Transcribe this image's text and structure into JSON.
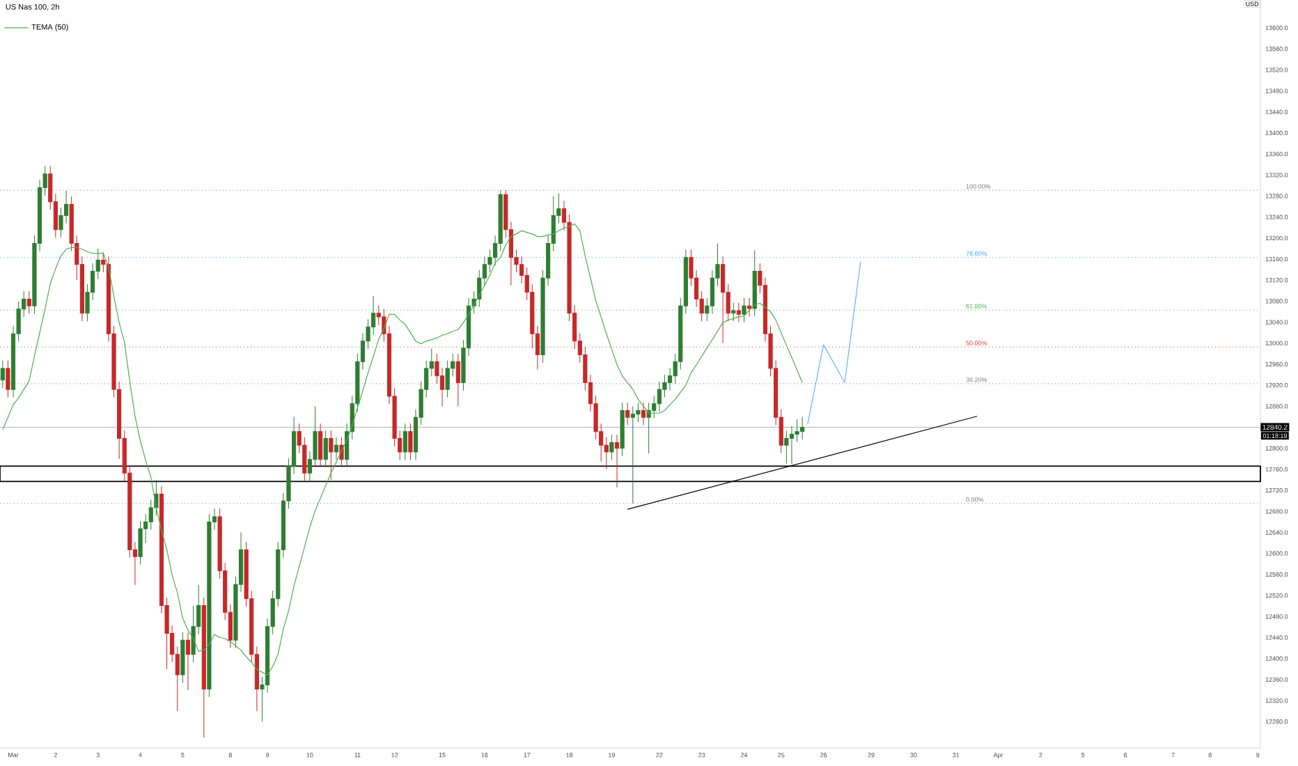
{
  "chart_data": {
    "type": "candlestick",
    "title": "US Nas 100, 2h",
    "categories": [
      null,
      null,
      "Mar",
      null,
      null,
      null,
      null,
      null,
      null,
      null,
      "2",
      null,
      null,
      null,
      null,
      null,
      null,
      null,
      "3",
      null,
      null,
      null,
      null,
      null,
      null,
      null,
      "4",
      null,
      null,
      null,
      null,
      null,
      null,
      null,
      "5",
      null,
      null,
      null,
      null,
      null,
      null,
      null,
      null,
      "8",
      null,
      null,
      null,
      null,
      null,
      null,
      "9",
      null,
      null,
      null,
      null,
      null,
      null,
      null,
      "10",
      null,
      null,
      null,
      null,
      null,
      null,
      null,
      null,
      "11",
      null,
      null,
      null,
      null,
      null,
      null,
      "12",
      null,
      null,
      null,
      null,
      null,
      null,
      null,
      null,
      "15",
      null,
      null,
      null,
      null,
      null,
      null,
      null,
      "16",
      null,
      null,
      null,
      null,
      null,
      null,
      null,
      "17",
      null,
      null,
      null,
      null,
      null,
      null,
      null,
      "18",
      null,
      null,
      null,
      null,
      null,
      null,
      null,
      "19",
      null,
      null,
      null,
      null,
      null,
      null,
      null,
      null,
      "22",
      null,
      null,
      null,
      null,
      null,
      null,
      null,
      "23",
      null,
      null,
      null,
      null,
      null,
      null,
      null,
      "24",
      null,
      null,
      null,
      null,
      null,
      null,
      "25",
      null,
      null,
      null,
      null,
      null,
      null,
      null,
      "26",
      null,
      null,
      null,
      null,
      null,
      null,
      null,
      null,
      "29",
      null,
      null,
      null,
      null,
      null,
      null,
      null,
      "30",
      null,
      null,
      null,
      null,
      null,
      null,
      null,
      "31",
      null,
      null,
      null,
      null,
      null,
      null,
      null,
      "Apr",
      null,
      null,
      null,
      null,
      null,
      null,
      null,
      "2",
      null,
      null,
      null,
      null,
      null,
      null,
      null,
      "5",
      null,
      null,
      null,
      null,
      null,
      null,
      null,
      "6",
      null,
      null,
      null,
      null,
      null,
      null,
      null,
      null,
      "7",
      null,
      null,
      null,
      null,
      null,
      null,
      "8",
      null,
      null,
      null,
      null,
      null,
      null,
      null,
      null,
      "9"
    ],
    "ohlc": [
      [
        12930,
        12967,
        12915,
        12952
      ],
      [
        12952,
        12967,
        12897,
        12912
      ],
      [
        12912,
        13033,
        12897,
        13018
      ],
      [
        13018,
        13080,
        13003,
        13065
      ],
      [
        13065,
        13099,
        13050,
        13084
      ],
      [
        13084,
        13099,
        13056,
        13071
      ],
      [
        13071,
        13205,
        13056,
        13190
      ],
      [
        13190,
        13311,
        13175,
        13296
      ],
      [
        13296,
        13337,
        13281,
        13322
      ],
      [
        13322,
        13337,
        13254,
        13269
      ],
      [
        13269,
        13284,
        13201,
        13216
      ],
      [
        13216,
        13258,
        13201,
        13243
      ],
      [
        13243,
        13290,
        13228,
        13264
      ],
      [
        13264,
        13279,
        13175,
        13190
      ],
      [
        13190,
        13205,
        13120,
        13150
      ],
      [
        13150,
        13165,
        13042,
        13057
      ],
      [
        13057,
        13112,
        13042,
        13097
      ],
      [
        13097,
        13152,
        13082,
        13137
      ],
      [
        13137,
        13180,
        13122,
        13158
      ],
      [
        13158,
        13173,
        13135,
        13150
      ],
      [
        13150,
        13165,
        13003,
        13018
      ],
      [
        13018,
        13033,
        12897,
        12912
      ],
      [
        12912,
        12927,
        12780,
        12819
      ],
      [
        12819,
        12834,
        12738,
        12753
      ],
      [
        12753,
        12768,
        12592,
        12607
      ],
      [
        12607,
        12622,
        12540,
        12594
      ],
      [
        12594,
        12662,
        12579,
        12647
      ],
      [
        12647,
        12675,
        12620,
        12660
      ],
      [
        12660,
        12702,
        12645,
        12687
      ],
      [
        12687,
        12740,
        12672,
        12713
      ],
      [
        12713,
        12728,
        12486,
        12501
      ],
      [
        12501,
        12516,
        12380,
        12448
      ],
      [
        12448,
        12463,
        12393,
        12408
      ],
      [
        12408,
        12423,
        12300,
        12369
      ],
      [
        12369,
        12450,
        12354,
        12435
      ],
      [
        12435,
        12450,
        12340,
        12408
      ],
      [
        12408,
        12500,
        12393,
        12461
      ],
      [
        12461,
        12540,
        12446,
        12501
      ],
      [
        12501,
        12516,
        12250,
        12342
      ],
      [
        12342,
        12675,
        12327,
        12660
      ],
      [
        12660,
        12685,
        12645,
        12670
      ],
      [
        12670,
        12685,
        12552,
        12567
      ],
      [
        12567,
        12582,
        12473,
        12488
      ],
      [
        12488,
        12503,
        12420,
        12435
      ],
      [
        12435,
        12556,
        12420,
        12541
      ],
      [
        12541,
        12640,
        12526,
        12607
      ],
      [
        12607,
        12622,
        12499,
        12514
      ],
      [
        12514,
        12529,
        12393,
        12408
      ],
      [
        12408,
        12423,
        12300,
        12342
      ],
      [
        12342,
        12365,
        12280,
        12350
      ],
      [
        12350,
        12476,
        12335,
        12461
      ],
      [
        12461,
        12529,
        12446,
        12514
      ],
      [
        12514,
        12622,
        12499,
        12607
      ],
      [
        12607,
        12715,
        12592,
        12700
      ],
      [
        12700,
        12781,
        12685,
        12766
      ],
      [
        12766,
        12860,
        12751,
        12832
      ],
      [
        12832,
        12847,
        12791,
        12806
      ],
      [
        12806,
        12821,
        12738,
        12753
      ],
      [
        12753,
        12794,
        12738,
        12779
      ],
      [
        12779,
        12880,
        12764,
        12832
      ],
      [
        12832,
        12847,
        12764,
        12779
      ],
      [
        12779,
        12834,
        12764,
        12819
      ],
      [
        12819,
        12834,
        12740,
        12793
      ],
      [
        12793,
        12821,
        12778,
        12806
      ],
      [
        12806,
        12821,
        12764,
        12779
      ],
      [
        12779,
        12847,
        12764,
        12832
      ],
      [
        12832,
        12900,
        12817,
        12885
      ],
      [
        12885,
        12980,
        12870,
        12965
      ],
      [
        12965,
        13019,
        12950,
        13004
      ],
      [
        13004,
        13046,
        12989,
        13031
      ],
      [
        13031,
        13090,
        13016,
        13057
      ],
      [
        13057,
        13072,
        13035,
        13050
      ],
      [
        13050,
        13065,
        13003,
        13018
      ],
      [
        13018,
        13033,
        12884,
        12899
      ],
      [
        12899,
        12914,
        12804,
        12819
      ],
      [
        12819,
        12834,
        12778,
        12793
      ],
      [
        12793,
        12847,
        12778,
        12832
      ],
      [
        12832,
        12847,
        12778,
        12793
      ],
      [
        12793,
        12874,
        12778,
        12859
      ],
      [
        12859,
        12927,
        12844,
        12912
      ],
      [
        12912,
        12967,
        12897,
        12952
      ],
      [
        12952,
        12990,
        12937,
        12965
      ],
      [
        12965,
        12980,
        12923,
        12938
      ],
      [
        12938,
        12953,
        12880,
        12912
      ],
      [
        12912,
        12967,
        12897,
        12952
      ],
      [
        12952,
        12980,
        12937,
        12965
      ],
      [
        12965,
        12980,
        12880,
        12925
      ],
      [
        12925,
        13006,
        12910,
        12991
      ],
      [
        12991,
        13086,
        12976,
        13071
      ],
      [
        13071,
        13099,
        13056,
        13084
      ],
      [
        13084,
        13139,
        13069,
        13124
      ],
      [
        13124,
        13165,
        13109,
        13150
      ],
      [
        13150,
        13178,
        13135,
        13163
      ],
      [
        13163,
        13205,
        13148,
        13190
      ],
      [
        13190,
        13291,
        13175,
        13283
      ],
      [
        13283,
        13291,
        13201,
        13216
      ],
      [
        13216,
        13231,
        13110,
        13163
      ],
      [
        13163,
        13178,
        13135,
        13150
      ],
      [
        13150,
        13165,
        13114,
        13129
      ],
      [
        13129,
        13144,
        13082,
        13097
      ],
      [
        13097,
        13112,
        12990,
        13018
      ],
      [
        13018,
        13033,
        12950,
        12978
      ],
      [
        12978,
        13139,
        12963,
        13124
      ],
      [
        13124,
        13205,
        13109,
        13190
      ],
      [
        13190,
        13280,
        13175,
        13243
      ],
      [
        13243,
        13285,
        13228,
        13256
      ],
      [
        13256,
        13271,
        13215,
        13230
      ],
      [
        13230,
        13245,
        13042,
        13057
      ],
      [
        13057,
        13072,
        12989,
        13004
      ],
      [
        13004,
        13019,
        12963,
        12978
      ],
      [
        12978,
        12993,
        12910,
        12925
      ],
      [
        12925,
        12940,
        12870,
        12885
      ],
      [
        12885,
        12900,
        12817,
        12832
      ],
      [
        12832,
        12847,
        12775,
        12806
      ],
      [
        12806,
        12821,
        12760,
        12793
      ],
      [
        12793,
        12826,
        12778,
        12811
      ],
      [
        12811,
        12826,
        12726,
        12800
      ],
      [
        12800,
        12887,
        12785,
        12872
      ],
      [
        12872,
        12887,
        12844,
        12859
      ],
      [
        12859,
        12880,
        12695,
        12865
      ],
      [
        12865,
        12887,
        12850,
        12872
      ],
      [
        12872,
        12887,
        12844,
        12859
      ],
      [
        12859,
        12887,
        12790,
        12872
      ],
      [
        12872,
        12900,
        12857,
        12885
      ],
      [
        12885,
        12927,
        12870,
        12912
      ],
      [
        12912,
        12940,
        12897,
        12925
      ],
      [
        12925,
        12953,
        12910,
        12938
      ],
      [
        12938,
        12980,
        12923,
        12965
      ],
      [
        12965,
        13086,
        12950,
        13071
      ],
      [
        13071,
        13178,
        13056,
        13163
      ],
      [
        13163,
        13178,
        13109,
        13124
      ],
      [
        13124,
        13139,
        13069,
        13084
      ],
      [
        13084,
        13099,
        13042,
        13057
      ],
      [
        13057,
        13086,
        13042,
        13071
      ],
      [
        13071,
        13139,
        13056,
        13124
      ],
      [
        13124,
        13190,
        13109,
        13150
      ],
      [
        13150,
        13165,
        13000,
        13097
      ],
      [
        13097,
        13112,
        13042,
        13057
      ],
      [
        13057,
        13077,
        13042,
        13062
      ],
      [
        13062,
        13077,
        13040,
        13055
      ],
      [
        13055,
        13086,
        13040,
        13071
      ],
      [
        13071,
        13086,
        13051,
        13066
      ],
      [
        13066,
        13177,
        13051,
        13137
      ],
      [
        13137,
        13152,
        13095,
        13110
      ],
      [
        13110,
        13125,
        13003,
        13018
      ],
      [
        13018,
        13033,
        12937,
        12952
      ],
      [
        12952,
        12967,
        12844,
        12859
      ],
      [
        12859,
        12874,
        12791,
        12806
      ],
      [
        12806,
        12834,
        12771,
        12819
      ],
      [
        12819,
        12842,
        12770,
        12827
      ],
      [
        12827,
        12855,
        12812,
        12832
      ],
      [
        12832,
        12860,
        12817,
        12840.2
      ],
      null,
      null,
      null,
      null,
      null,
      null,
      null,
      null,
      null,
      null,
      null,
      null,
      null,
      null,
      null,
      null,
      null,
      null,
      null,
      null,
      null,
      null,
      null,
      null,
      null,
      null,
      null,
      null,
      null,
      null,
      null,
      null,
      null,
      null,
      null,
      null,
      null,
      null,
      null,
      null,
      null,
      null,
      null,
      null,
      null,
      null,
      null,
      null,
      null,
      null,
      null,
      null,
      null,
      null,
      null,
      null,
      null,
      null,
      null,
      null,
      null,
      null,
      null,
      null,
      null,
      null,
      null,
      null,
      null,
      null,
      null,
      null,
      null,
      null,
      null,
      null,
      null,
      null,
      null,
      null,
      null,
      null,
      null,
      null,
      null,
      null
    ],
    "series": [
      {
        "type": "line",
        "name": "TEMA (50)",
        "color": "#4caf50",
        "values": [
          12835,
          12859,
          12883,
          12896,
          12912,
          12928,
          12975,
          13020,
          13065,
          13113,
          13142,
          13166,
          13179,
          13182,
          13182,
          13179,
          13174,
          13171,
          13171,
          13171,
          13145,
          13089,
          13039,
          13002,
          12928,
          12861,
          12814,
          12777,
          12745,
          12687,
          12644,
          12607,
          12559,
          12525,
          12477,
          12454,
          12438,
          12414,
          12416,
          12427,
          12446,
          12440,
          12438,
          12432,
          12424,
          12416,
          12403,
          12393,
          12379,
          12374,
          12369,
          12385,
          12408,
          12456,
          12491,
          12538,
          12575,
          12612,
          12650,
          12681,
          12705,
          12729,
          12753,
          12774,
          12795,
          12816,
          12843,
          12877,
          12909,
          12944,
          12975,
          13007,
          13028,
          13055,
          13055,
          13044,
          13036,
          13020,
          13004,
          12999,
          13004,
          13007,
          13010,
          13015,
          13018,
          13023,
          13026,
          13039,
          13055,
          13073,
          13092,
          13110,
          13129,
          13153,
          13163,
          13187,
          13203,
          13208,
          13214,
          13211,
          13208,
          13203,
          13203,
          13206,
          13208,
          13214,
          13219,
          13222,
          13227,
          13214,
          13166,
          13124,
          13081,
          13050,
          13018,
          12989,
          12959,
          12938,
          12925,
          12912,
          12893,
          12880,
          12867,
          12867,
          12867,
          12872,
          12883,
          12893,
          12907,
          12920,
          12944,
          12959,
          12975,
          12991,
          13007,
          13023,
          13039,
          13044,
          13047,
          13050,
          13052,
          13063,
          13073,
          13076,
          13068,
          13060,
          13044,
          13020,
          12996,
          12973,
          12949,
          12925,
          null,
          null,
          null,
          null,
          null,
          null,
          null,
          null,
          null,
          null,
          null,
          null,
          null,
          null,
          null,
          null,
          null,
          null,
          null,
          null,
          null,
          null,
          null,
          null,
          null,
          null,
          null,
          null,
          null,
          null,
          null,
          null,
          null,
          null,
          null,
          null,
          null,
          null,
          null,
          null,
          null,
          null,
          null,
          null,
          null,
          null,
          null,
          null,
          null,
          null,
          null,
          null,
          null,
          null,
          null,
          null,
          null,
          null,
          null,
          null,
          null,
          null,
          null,
          null,
          null,
          null,
          null,
          null,
          null,
          null,
          null,
          null,
          null,
          null,
          null,
          null,
          null,
          null,
          null,
          null,
          null,
          null,
          null,
          null,
          null,
          null
        ]
      },
      {
        "type": "line",
        "color": "#000000",
        "values": [
          null,
          null,
          null,
          null,
          null,
          null,
          null,
          null,
          null,
          null,
          null,
          null,
          null,
          null,
          null,
          null,
          null,
          null,
          null,
          null,
          null,
          null,
          null,
          null,
          null,
          null,
          null,
          null,
          null,
          null,
          null,
          null,
          null,
          null,
          null,
          null,
          null,
          null,
          null,
          null,
          null,
          null,
          null,
          null,
          null,
          null,
          null,
          null,
          null,
          null,
          null,
          null,
          null,
          null,
          null,
          null,
          null,
          null,
          null,
          null,
          null,
          null,
          null,
          null,
          null,
          null,
          null,
          null,
          null,
          null,
          null,
          null,
          null,
          null,
          null,
          null,
          null,
          null,
          null,
          null,
          null,
          null,
          null,
          null,
          null,
          null,
          null,
          null,
          null,
          null,
          null,
          null,
          null,
          null,
          null,
          null,
          null,
          null,
          null,
          null,
          null,
          null,
          null,
          null,
          null,
          null,
          null,
          null,
          null,
          null,
          null,
          null,
          null,
          null,
          null,
          null,
          null,
          null,
          12684,
          null,
          null,
          null,
          null,
          null,
          null,
          null,
          null,
          null,
          null,
          null,
          null,
          null,
          null,
          null,
          null,
          null,
          null,
          null,
          null,
          null,
          null,
          null,
          null,
          null,
          null,
          null,
          null,
          null,
          null,
          null,
          null,
          null,
          null,
          null,
          null,
          null,
          null,
          null,
          null,
          null,
          null,
          null,
          null,
          null,
          null,
          null,
          null,
          null,
          null,
          null,
          null,
          null,
          null,
          null,
          null,
          null,
          null,
          null,
          null,
          null,
          null,
          null,
          null,
          null,
          12861,
          null,
          null,
          null,
          null,
          null,
          null,
          null,
          null,
          null,
          null,
          null,
          null,
          null,
          null,
          null,
          null,
          null,
          null,
          null,
          null,
          null,
          null,
          null,
          null,
          null,
          null,
          null,
          null,
          null,
          null,
          null,
          null,
          null,
          null,
          null,
          null,
          null,
          null,
          null,
          null,
          null,
          null,
          null,
          null,
          null,
          null,
          null,
          null,
          null,
          null,
          null,
          null,
          null
        ]
      },
      {
        "type": "line",
        "color": "#64b5f6",
        "values": [
          null,
          null,
          null,
          null,
          null,
          null,
          null,
          null,
          null,
          null,
          null,
          null,
          null,
          null,
          null,
          null,
          null,
          null,
          null,
          null,
          null,
          null,
          null,
          null,
          null,
          null,
          null,
          null,
          null,
          null,
          null,
          null,
          null,
          null,
          null,
          null,
          null,
          null,
          null,
          null,
          null,
          null,
          null,
          null,
          null,
          null,
          null,
          null,
          null,
          null,
          null,
          null,
          null,
          null,
          null,
          null,
          null,
          null,
          null,
          null,
          null,
          null,
          null,
          null,
          null,
          null,
          null,
          null,
          null,
          null,
          null,
          null,
          null,
          null,
          null,
          null,
          null,
          null,
          null,
          null,
          null,
          null,
          null,
          null,
          null,
          null,
          null,
          null,
          null,
          null,
          null,
          null,
          null,
          null,
          null,
          null,
          null,
          null,
          null,
          null,
          null,
          null,
          null,
          null,
          null,
          null,
          null,
          null,
          null,
          null,
          null,
          null,
          null,
          null,
          null,
          null,
          null,
          null,
          null,
          null,
          null,
          null,
          null,
          null,
          null,
          null,
          null,
          null,
          null,
          null,
          null,
          null,
          null,
          null,
          null,
          null,
          null,
          null,
          null,
          null,
          null,
          null,
          null,
          null,
          null,
          null,
          null,
          null,
          null,
          null,
          null,
          null,
          12846,
          null,
          null,
          12997,
          null,
          null,
          null,
          12925,
          null,
          null,
          13155,
          null,
          null,
          null,
          null,
          null,
          null,
          null,
          null,
          null,
          null,
          null,
          null,
          null,
          null,
          null,
          null,
          null,
          null,
          null,
          null,
          null,
          null,
          null,
          null,
          null,
          null,
          null,
          null,
          null,
          null,
          null,
          null,
          null,
          null,
          null,
          null,
          null,
          null,
          null,
          null,
          null,
          null,
          null,
          null,
          null,
          null,
          null,
          null,
          null,
          null,
          null,
          null,
          null,
          null,
          null,
          null,
          null,
          null,
          null,
          null,
          null,
          null,
          null,
          null,
          null,
          null,
          null,
          null,
          null,
          null,
          null,
          null,
          null,
          null,
          null
        ]
      }
    ],
    "ylim": [
      12230,
      13653
    ],
    "yticks": [
      {
        "value": 12280,
        "label": "12280.0"
      },
      {
        "value": 12320,
        "label": "12320.0"
      },
      {
        "value": 12360,
        "label": "12360.0"
      },
      {
        "value": 12400,
        "label": "12400.0"
      },
      {
        "value": 12440,
        "label": "12440.0"
      },
      {
        "value": 12480,
        "label": "12480.0"
      },
      {
        "value": 12520,
        "label": "12520.0"
      },
      {
        "value": 12560,
        "label": "12560.0"
      },
      {
        "value": 12600,
        "label": "12600.0"
      },
      {
        "value": 12640,
        "label": "12640.0"
      },
      {
        "value": 12680,
        "label": "12680.0"
      },
      {
        "value": 12720,
        "label": "12720.0"
      },
      {
        "value": 12760,
        "label": "12760.0"
      },
      {
        "value": 12800,
        "label": "12800.0"
      },
      {
        "value": 12880,
        "label": "12880.0"
      },
      {
        "value": 12920,
        "label": "12920.0"
      },
      {
        "value": 12960,
        "label": "12960.0"
      },
      {
        "value": 13000,
        "label": "13000.0"
      },
      {
        "value": 13040,
        "label": "13040.0"
      },
      {
        "value": 13080,
        "label": "13080.0"
      },
      {
        "value": 13120,
        "label": "13120.0"
      },
      {
        "value": 13160,
        "label": "13160.0"
      },
      {
        "value": 13200,
        "label": "13200.0"
      },
      {
        "value": 13240,
        "label": "13240.0"
      },
      {
        "value": 13280,
        "label": "13280.0"
      },
      {
        "value": 13320,
        "label": "13320.0"
      },
      {
        "value": 13360,
        "label": "13360.0"
      },
      {
        "value": 13400,
        "label": "13400.0"
      },
      {
        "value": 13440,
        "label": "13440.0"
      },
      {
        "value": 13480,
        "label": "13480.0"
      },
      {
        "value": 13520,
        "label": "13520.0"
      },
      {
        "value": 13560,
        "label": "13560.0"
      },
      {
        "value": 13600,
        "label": "13600.0"
      }
    ],
    "ref_lines": [
      {
        "axis": "y",
        "value": 13291,
        "color": "#787b86",
        "line_style": "dotted"
      },
      {
        "axis": "y",
        "value": 13163,
        "color": "#42a5f5",
        "line_style": "dotted"
      },
      {
        "axis": "y",
        "value": 13063,
        "color": "#4caf50",
        "line_style": "dotted"
      },
      {
        "axis": "y",
        "value": 12993,
        "color": "#f23645",
        "line_style": "dotted"
      },
      {
        "axis": "y",
        "value": 12923,
        "color": "#787b86",
        "line_style": "dotted"
      },
      {
        "axis": "y",
        "value": 12695,
        "color": "#787b86",
        "line_style": "dotted"
      },
      {
        "axis": "y",
        "value": 12840.2,
        "label": "12840.2",
        "color": "#b2b5be",
        "line_style": "solid"
      }
    ],
    "bands": [
      {
        "axis": "y",
        "from": 12737,
        "to": 12766,
        "color": "#ffffff"
      }
    ],
    "annotations": [
      "01:18:19",
      "USD",
      {
        "text": "100.00%",
        "y": 13291
      },
      {
        "text": "78.60%",
        "y": 13163
      },
      {
        "text": "61.80%",
        "y": 13063
      },
      {
        "text": "50.00%",
        "y": 12993
      },
      {
        "text": "38.20%",
        "y": 12923
      },
      {
        "text": "0.00%",
        "y": 12695
      }
    ],
    "legend": "top left"
  }
}
